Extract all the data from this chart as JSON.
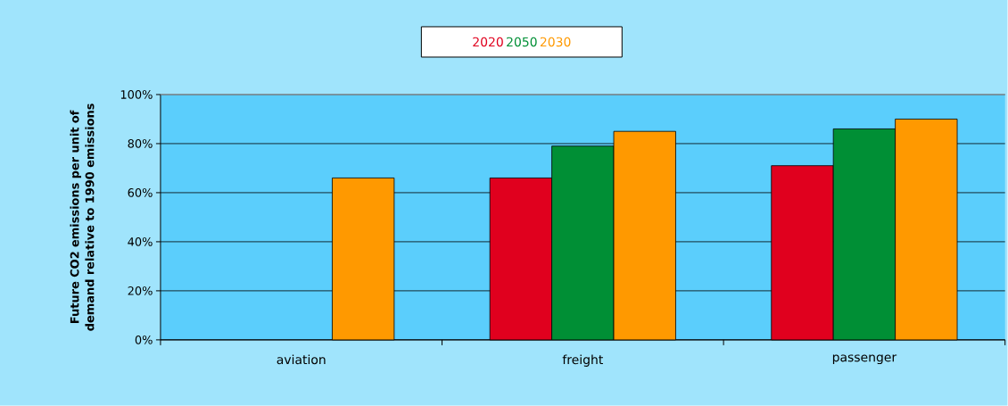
{
  "chart_data": {
    "type": "bar",
    "ylabel": "Future CO2 emissions per unit of demand relative to 1990 emissions",
    "categories": [
      "aviation",
      "freight",
      "passenger"
    ],
    "series": [
      {
        "name": "2020",
        "color": "#e0001e",
        "values": [
          null,
          66,
          71
        ]
      },
      {
        "name": "2050",
        "color": "#008f35",
        "values": [
          null,
          79,
          86
        ]
      },
      {
        "name": "2030",
        "color": "#ff9900",
        "values": [
          66,
          85,
          90
        ]
      }
    ],
    "ylim": [
      0,
      100
    ],
    "yticks": [
      {
        "value": 0,
        "label": "0%"
      },
      {
        "value": 20,
        "label": "20%"
      },
      {
        "value": 40,
        "label": "40%"
      },
      {
        "value": 60,
        "label": "60%"
      },
      {
        "value": 80,
        "label": "80%"
      },
      {
        "value": 100,
        "label": "100%"
      }
    ],
    "grid": "y",
    "legend": "top"
  }
}
